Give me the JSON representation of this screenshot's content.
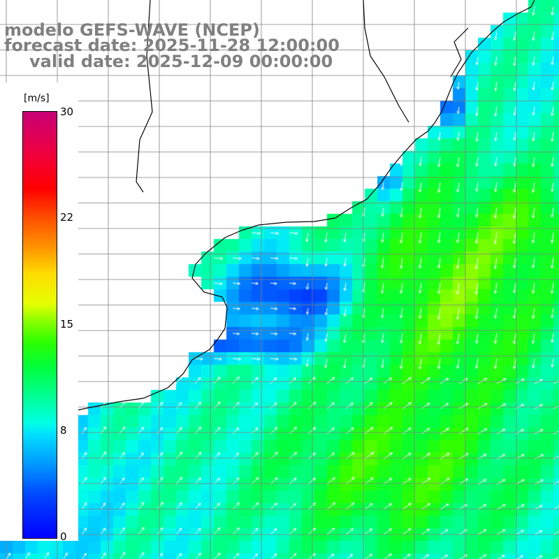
{
  "title": {
    "model": "modelo GEFS-WAVE (NCEP)",
    "forecast": "forecast date: 2025-11-28 12:00:00",
    "valid": "valid date: 2025-12-09 00:00:00"
  },
  "legend": {
    "unit": "[m/s]",
    "ticks": [
      "30",
      "22",
      "15",
      "8",
      "0"
    ],
    "tick_values": [
      30,
      22,
      15,
      8,
      0
    ],
    "range": [
      0,
      30
    ],
    "colors": [
      "#0000ff",
      "#00a0ff",
      "#00ffe6",
      "#00ff3c",
      "#8cff00",
      "#e6ff00",
      "#ff9600",
      "#ff0000",
      "#c80078"
    ]
  },
  "map": {
    "variable": "wind speed and direction",
    "ocean_colors": {
      "calm": "#0050ff",
      "moderate": "#00e0ff",
      "fresh": "#00ff60",
      "strong": "#a0ff00"
    },
    "land_color": "#ffffff",
    "grid_color": "#808080",
    "coast_color": "#000000",
    "arrow_color": "#ffffff"
  }
}
